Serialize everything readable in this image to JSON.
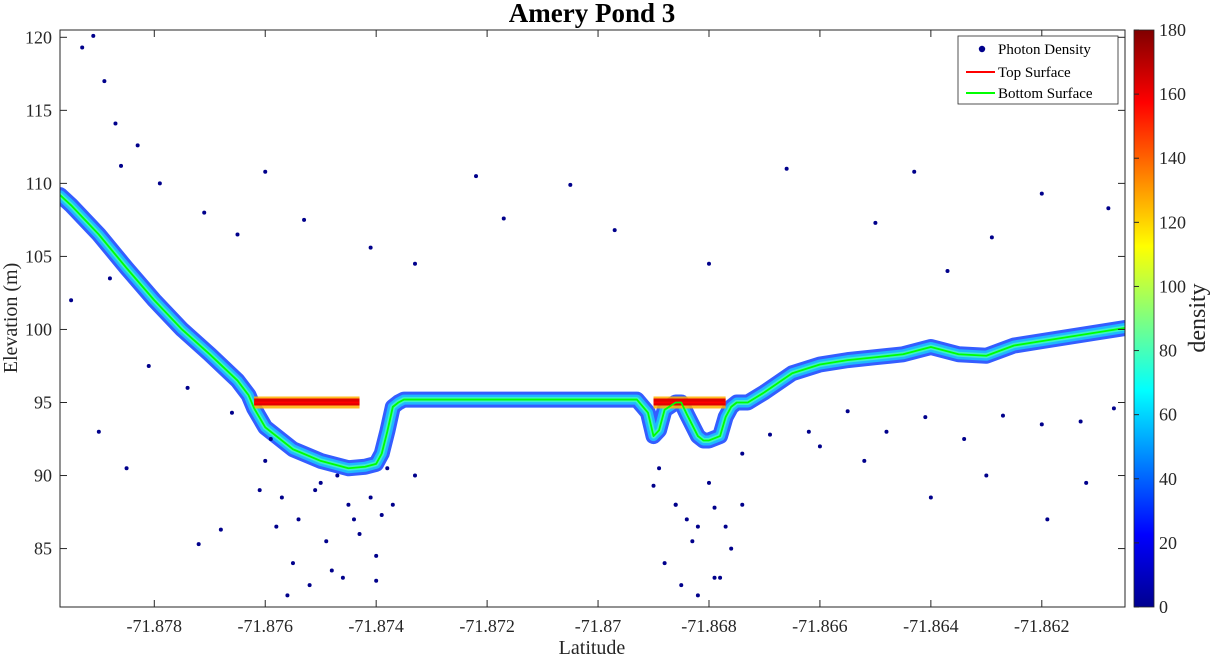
{
  "chart_data": {
    "type": "scatter",
    "title": "Amery Pond 3",
    "xlabel": "Latitude",
    "ylabel": "Elevation (m)",
    "xlim": [
      -71.8797,
      -71.8605
    ],
    "ylim": [
      81,
      120.5
    ],
    "x_ticks": [
      -71.878,
      -71.876,
      -71.874,
      -71.872,
      -71.87,
      -71.868,
      -71.866,
      -71.864,
      -71.862
    ],
    "x_tick_labels": [
      "-71.878",
      "-71.876",
      "-71.874",
      "-71.872",
      "-71.87",
      "-71.868",
      "-71.866",
      "-71.864",
      "-71.862"
    ],
    "y_ticks": [
      85,
      90,
      95,
      100,
      105,
      110,
      115,
      120
    ],
    "y_tick_labels": [
      "85",
      "90",
      "95",
      "100",
      "105",
      "110",
      "115",
      "120"
    ],
    "grid": false,
    "legend": {
      "placement": "top-right",
      "entries": [
        {
          "label": "Photon Density",
          "marker": "dot",
          "color": "#00008b"
        },
        {
          "label": "Top Surface",
          "marker": "line",
          "color": "#ff0000"
        },
        {
          "label": "Bottom Surface",
          "marker": "line",
          "color": "#00ff00"
        }
      ]
    },
    "colorbar": {
      "label": "density",
      "colormap": "jet",
      "range": [
        0,
        180
      ],
      "ticks": [
        0,
        20,
        40,
        60,
        80,
        100,
        120,
        140,
        160,
        180
      ],
      "tick_labels": [
        "0",
        "20",
        "40",
        "60",
        "80",
        "100",
        "120",
        "140",
        "160",
        "180"
      ]
    },
    "series": [
      {
        "name": "Top Surface",
        "color": "#ff0000",
        "segments": [
          {
            "x": [
              -71.8762,
              -71.8743
            ],
            "y": [
              95.0,
              95.0
            ]
          },
          {
            "x": [
              -71.869,
              -71.8677
            ],
            "y": [
              95.0,
              95.0
            ]
          }
        ]
      },
      {
        "name": "Bottom Surface",
        "color": "#00ff00",
        "x": [
          -71.8797,
          -71.8795,
          -71.879,
          -71.8785,
          -71.878,
          -71.8775,
          -71.877,
          -71.8765,
          -71.8763,
          -71.8762,
          -71.876,
          -71.8755,
          -71.875,
          -71.8745,
          -71.8742,
          -71.874,
          -71.8739,
          -71.8738,
          -71.8737,
          -71.8736,
          -71.8735,
          -71.873,
          -71.872,
          -71.871,
          -71.87,
          -71.8693,
          -71.8691,
          -71.869,
          -71.8689,
          -71.8688,
          -71.8686,
          -71.8685,
          -71.8684,
          -71.8682,
          -71.8681,
          -71.868,
          -71.8678,
          -71.8677,
          -71.8676,
          -71.8675,
          -71.8673,
          -71.867,
          -71.8665,
          -71.866,
          -71.8655,
          -71.865,
          -71.8645,
          -71.864,
          -71.8635,
          -71.863,
          -71.8625,
          -71.862,
          -71.8615,
          -71.861,
          -71.8605
        ],
        "y": [
          109.2,
          108.5,
          106.5,
          104.2,
          102.0,
          100.0,
          98.3,
          96.5,
          95.5,
          94.6,
          93.3,
          91.8,
          91.0,
          90.5,
          90.6,
          90.8,
          91.5,
          93.0,
          94.7,
          95.0,
          95.2,
          95.2,
          95.2,
          95.2,
          95.2,
          95.2,
          94.3,
          92.7,
          93.1,
          94.5,
          95.0,
          95.0,
          94.2,
          92.7,
          92.4,
          92.4,
          92.7,
          94.0,
          94.7,
          95.0,
          95.0,
          95.7,
          97.0,
          97.6,
          97.9,
          98.1,
          98.3,
          98.8,
          98.3,
          98.2,
          98.9,
          99.2,
          99.5,
          99.8,
          100.1
        ]
      },
      {
        "name": "Photon Density",
        "marker": "dot",
        "color": "#00008b",
        "x": [
          -71.8793,
          -71.8791,
          -71.8789,
          -71.8787,
          -71.8786,
          -71.8783,
          -71.8779,
          -71.8771,
          -71.8765,
          -71.876,
          -71.8753,
          -71.8741,
          -71.8733,
          -71.8722,
          -71.8717,
          -71.8705,
          -71.8697,
          -71.868,
          -71.8666,
          -71.865,
          -71.8643,
          -71.8637,
          -71.8629,
          -71.862,
          -71.8608,
          -71.8795,
          -71.8788,
          -71.8781,
          -71.8774,
          -71.8766,
          -71.8759,
          -71.8751,
          -71.8745,
          -71.8739,
          -71.8733,
          -71.869,
          -71.8686,
          -71.8682,
          -71.8679,
          -71.8674,
          -71.8669,
          -71.8662,
          -71.8655,
          -71.8648,
          -71.8641,
          -71.8634,
          -71.8627,
          -71.862,
          -71.8613,
          -71.8607,
          -71.8761,
          -71.8758,
          -71.8755,
          -71.8752,
          -71.8749,
          -71.8746,
          -71.8743,
          -71.874,
          -71.8737,
          -71.876,
          -71.8757,
          -71.8754,
          -71.875,
          -71.8747,
          -71.8744,
          -71.8741,
          -71.8738,
          -71.8689,
          -71.8686,
          -71.8683,
          -71.868,
          -71.8677,
          -71.8674,
          -71.8688,
          -71.8685,
          -71.8682,
          -71.8679,
          -71.8676,
          -71.8756,
          -71.8748,
          -71.874,
          -71.8684,
          -71.8678,
          -71.879,
          -71.8785,
          -71.8772,
          -71.8768,
          -71.866,
          -71.8652,
          -71.864,
          -71.863,
          -71.8619,
          -71.8612
        ],
        "y": [
          119.3,
          120.1,
          117.0,
          114.1,
          111.2,
          112.6,
          110.0,
          108.0,
          106.5,
          110.8,
          107.5,
          105.6,
          104.5,
          110.5,
          107.6,
          109.9,
          106.8,
          104.5,
          111.0,
          107.3,
          110.8,
          104.0,
          106.3,
          109.3,
          108.3,
          102.0,
          103.5,
          97.5,
          96.0,
          94.3,
          92.5,
          89.0,
          88.0,
          87.3,
          90.0,
          89.3,
          88.0,
          86.5,
          87.8,
          91.5,
          92.8,
          93.0,
          94.4,
          93.0,
          94.0,
          92.5,
          94.1,
          93.5,
          93.7,
          94.6,
          89.0,
          86.5,
          84.0,
          82.5,
          85.5,
          83.0,
          86.0,
          84.5,
          88.0,
          91.0,
          88.5,
          87.0,
          89.5,
          90.0,
          87.0,
          88.5,
          90.5,
          90.5,
          88.0,
          85.5,
          89.5,
          86.5,
          88.0,
          84.0,
          82.5,
          81.8,
          83.0,
          85.0,
          81.8,
          83.5,
          82.8,
          87.0,
          83.0,
          93.0,
          90.5,
          85.3,
          86.3,
          92.0,
          91.0,
          88.5,
          90.0,
          87.0,
          89.5
        ]
      }
    ]
  }
}
